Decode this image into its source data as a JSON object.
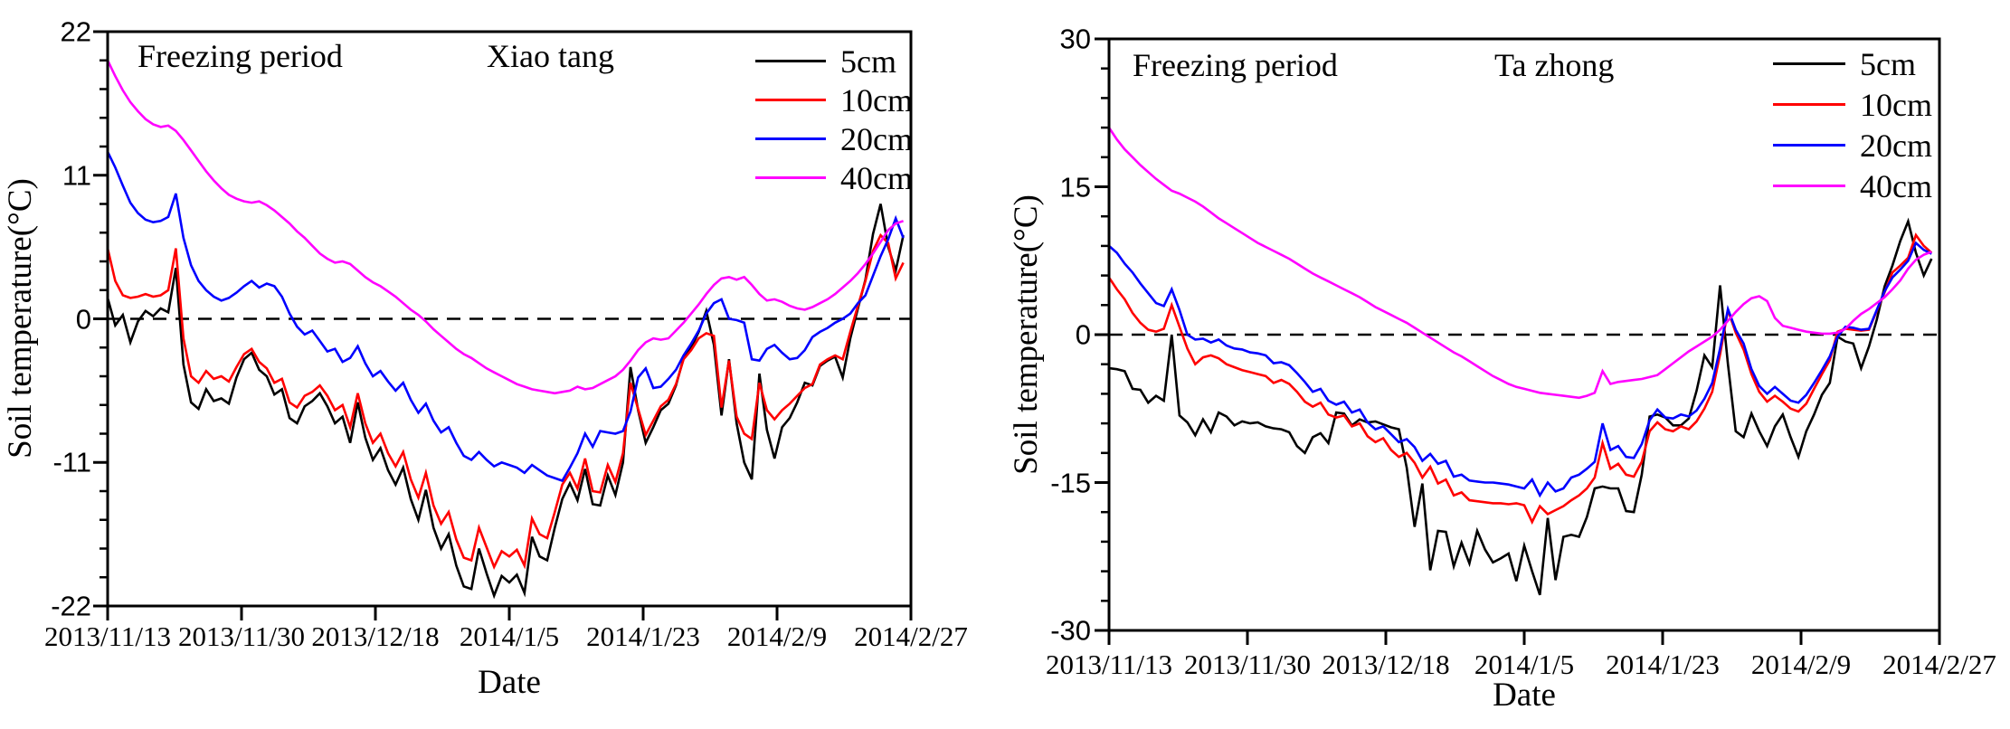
{
  "figure": {
    "background": "#ffffff",
    "text_color": "#000000"
  },
  "chart_data": [
    {
      "type": "line",
      "site_label": "Xiao tang",
      "freezing_label": "Freezing period",
      "legend_position": "top-right-inside",
      "zero_reference_line": true,
      "x_axis": {
        "title": "Date",
        "start": "2013/11/13",
        "end": "2014/2/27",
        "days": 106,
        "tick_labels": [
          "2013/11/13",
          "2013/11/30",
          "2013/12/18",
          "2014/1/5",
          "2014/1/23",
          "2014/2/9",
          "2014/2/27"
        ]
      },
      "y_axis": {
        "title": "Soil temperature(°C)",
        "min": -22,
        "max": 22,
        "major_ticks": [
          22,
          11,
          0,
          -11,
          -22
        ],
        "minor_divisions": 5
      },
      "series": [
        {
          "name": "5cm",
          "color": "#000000",
          "values": [
            1.6,
            -0.5,
            0.3,
            -1.8,
            -0.2,
            0.6,
            0.2,
            0.8,
            0.5,
            3.9,
            -3.5,
            -6.4,
            -6.9,
            -5.4,
            -6.3,
            -6.1,
            -6.5,
            -4.5,
            -3.1,
            -2.6,
            -3.9,
            -4.4,
            -5.8,
            -5.4,
            -7.6,
            -8.0,
            -6.7,
            -6.3,
            -5.7,
            -6.7,
            -8.0,
            -7.5,
            -9.5,
            -6.4,
            -9.1,
            -10.8,
            -9.9,
            -11.6,
            -12.7,
            -11.4,
            -13.8,
            -15.4,
            -13.1,
            -16.0,
            -17.6,
            -16.5,
            -18.9,
            -20.5,
            -20.7,
            -17.6,
            -19.5,
            -21.2,
            -19.7,
            -20.2,
            -19.6,
            -21.0,
            -16.7,
            -18.2,
            -18.5,
            -16.0,
            -13.8,
            -12.6,
            -13.9,
            -11.5,
            -14.2,
            -14.3,
            -12.0,
            -13.5,
            -11.0,
            -3.7,
            -7.0,
            -9.5,
            -8.3,
            -7.0,
            -6.5,
            -5.1,
            -3.0,
            -2.2,
            -1.0,
            0.6,
            -2.0,
            -7.4,
            -3.1,
            -8.0,
            -11.0,
            -12.3,
            -4.2,
            -8.5,
            -10.7,
            -8.3,
            -7.6,
            -6.4,
            -4.9,
            -5.1,
            -3.6,
            -3.2,
            -2.9,
            -4.5,
            -1.5,
            0.8,
            3.0,
            6.5,
            8.8,
            5.5,
            3.7,
            6.4
          ]
        },
        {
          "name": "10cm",
          "color": "#ff0000",
          "values": [
            5.4,
            2.9,
            1.8,
            1.6,
            1.7,
            1.9,
            1.7,
            1.8,
            2.2,
            5.4,
            -1.5,
            -4.4,
            -4.9,
            -4.0,
            -4.6,
            -4.4,
            -4.8,
            -3.7,
            -2.7,
            -2.3,
            -3.3,
            -3.8,
            -4.9,
            -4.6,
            -6.4,
            -6.8,
            -5.9,
            -5.6,
            -5.1,
            -5.9,
            -7.0,
            -6.6,
            -8.3,
            -5.7,
            -8.0,
            -9.5,
            -8.8,
            -10.3,
            -11.3,
            -10.2,
            -12.3,
            -13.7,
            -11.8,
            -14.3,
            -15.7,
            -14.8,
            -16.9,
            -18.3,
            -18.5,
            -16.0,
            -17.5,
            -19.0,
            -17.8,
            -18.2,
            -17.7,
            -18.9,
            -15.3,
            -16.5,
            -16.8,
            -14.8,
            -12.7,
            -11.8,
            -13.0,
            -10.7,
            -13.2,
            -13.3,
            -11.2,
            -12.5,
            -10.3,
            -4.9,
            -6.9,
            -8.9,
            -7.8,
            -6.7,
            -6.2,
            -5.0,
            -3.1,
            -2.4,
            -1.5,
            -1.1,
            -1.3,
            -6.8,
            -3.2,
            -7.5,
            -8.8,
            -9.2,
            -4.9,
            -7.0,
            -7.7,
            -7.0,
            -6.5,
            -5.9,
            -5.3,
            -5.0,
            -3.5,
            -3.1,
            -2.8,
            -3.1,
            -1.0,
            1.0,
            2.9,
            5.2,
            6.4,
            5.8,
            3.1,
            4.3
          ]
        },
        {
          "name": "20cm",
          "color": "#0000ff",
          "values": [
            12.8,
            11.6,
            10.2,
            8.9,
            8.1,
            7.6,
            7.4,
            7.5,
            7.8,
            9.6,
            6.2,
            4.1,
            2.9,
            2.2,
            1.7,
            1.4,
            1.6,
            2.0,
            2.5,
            2.9,
            2.4,
            2.7,
            2.5,
            1.7,
            0.4,
            -0.6,
            -1.2,
            -0.9,
            -1.7,
            -2.5,
            -2.3,
            -3.3,
            -3.0,
            -2.1,
            -3.4,
            -4.4,
            -4.0,
            -4.8,
            -5.5,
            -4.9,
            -6.2,
            -7.2,
            -6.5,
            -7.8,
            -8.7,
            -8.3,
            -9.5,
            -10.5,
            -10.8,
            -10.2,
            -10.8,
            -11.3,
            -11.0,
            -11.2,
            -11.4,
            -11.8,
            -11.2,
            -11.6,
            -12.0,
            -12.2,
            -12.4,
            -11.4,
            -10.3,
            -8.8,
            -9.8,
            -8.6,
            -8.7,
            -8.8,
            -8.6,
            -7.1,
            -4.5,
            -3.8,
            -5.3,
            -5.2,
            -4.6,
            -3.9,
            -2.8,
            -1.9,
            -0.9,
            0.4,
            1.2,
            1.5,
            0.0,
            -0.1,
            -0.3,
            -3.1,
            -3.2,
            -2.3,
            -2.0,
            -2.6,
            -3.1,
            -3.0,
            -2.4,
            -1.4,
            -1.0,
            -0.7,
            -0.3,
            0.0,
            0.4,
            1.2,
            1.8,
            3.3,
            4.8,
            6.1,
            7.7,
            6.2
          ]
        },
        {
          "name": "40cm",
          "color": "#ff00ff",
          "values": [
            19.8,
            18.6,
            17.5,
            16.6,
            15.9,
            15.3,
            14.9,
            14.7,
            14.8,
            14.4,
            13.7,
            12.9,
            12.1,
            11.3,
            10.6,
            10.0,
            9.5,
            9.2,
            9.0,
            8.9,
            9.0,
            8.7,
            8.3,
            7.8,
            7.3,
            6.7,
            6.2,
            5.6,
            5.0,
            4.6,
            4.3,
            4.4,
            4.2,
            3.7,
            3.2,
            2.8,
            2.5,
            2.1,
            1.7,
            1.2,
            0.7,
            0.3,
            -0.2,
            -0.8,
            -1.3,
            -1.8,
            -2.3,
            -2.7,
            -3.0,
            -3.4,
            -3.8,
            -4.1,
            -4.4,
            -4.7,
            -5.0,
            -5.2,
            -5.4,
            -5.5,
            -5.6,
            -5.7,
            -5.6,
            -5.5,
            -5.2,
            -5.4,
            -5.3,
            -5.0,
            -4.7,
            -4.4,
            -3.9,
            -3.2,
            -2.4,
            -1.8,
            -1.5,
            -1.6,
            -1.5,
            -0.9,
            -0.3,
            0.4,
            1.1,
            1.9,
            2.6,
            3.1,
            3.2,
            3.0,
            3.2,
            2.6,
            1.9,
            1.4,
            1.5,
            1.3,
            1.0,
            0.8,
            0.7,
            0.9,
            1.2,
            1.5,
            1.9,
            2.4,
            2.9,
            3.5,
            4.2,
            5.0,
            5.9,
            6.8,
            7.3,
            7.5
          ]
        }
      ]
    },
    {
      "type": "line",
      "site_label": "Ta zhong",
      "freezing_label": "Freezing period",
      "legend_position": "top-right-inside",
      "zero_reference_line": true,
      "x_axis": {
        "title": "Date",
        "start": "2013/11/13",
        "end": "2014/2/27",
        "days": 106,
        "tick_labels": [
          "2013/11/13",
          "2013/11/30",
          "2013/12/18",
          "2014/1/5",
          "2014/1/23",
          "2014/2/9",
          "2014/2/27"
        ]
      },
      "y_axis": {
        "title": "Soil temperature(°C)",
        "min": -30,
        "max": 30,
        "major_ticks": [
          30,
          15,
          0,
          -15,
          -30
        ],
        "minor_divisions": 5
      },
      "series": [
        {
          "name": "5cm",
          "color": "#000000",
          "values": [
            -3.4,
            -3.5,
            -3.7,
            -5.5,
            -5.6,
            -6.9,
            -6.2,
            -6.7,
            0.0,
            -8.2,
            -8.9,
            -10.2,
            -8.6,
            -9.9,
            -7.9,
            -8.3,
            -9.2,
            -8.8,
            -9.0,
            -8.9,
            -9.3,
            -9.5,
            -9.6,
            -9.9,
            -11.3,
            -12.0,
            -10.4,
            -10.0,
            -11.0,
            -7.9,
            -8.0,
            -9.2,
            -8.6,
            -8.9,
            -8.8,
            -9.1,
            -9.4,
            -9.6,
            -13.5,
            -19.5,
            -15.1,
            -23.9,
            -19.9,
            -20.0,
            -23.5,
            -21.1,
            -23.2,
            -19.9,
            -21.8,
            -23.1,
            -22.7,
            -22.2,
            -25.0,
            -21.4,
            -24.0,
            -26.4,
            -18.6,
            -24.9,
            -20.5,
            -20.3,
            -20.5,
            -18.5,
            -15.6,
            -15.4,
            -15.6,
            -15.6,
            -17.9,
            -18.0,
            -14.2,
            -8.3,
            -8.1,
            -8.4,
            -9.2,
            -9.2,
            -8.5,
            -5.7,
            -2.1,
            -3.3,
            5.0,
            -3.0,
            -9.8,
            -10.4,
            -8.0,
            -9.8,
            -11.3,
            -9.3,
            -8.1,
            -10.4,
            -12.4,
            -9.8,
            -8.1,
            -6.1,
            -4.9,
            -0.2,
            -0.7,
            -0.9,
            -3.4,
            -1.2,
            1.5,
            4.9,
            7.0,
            9.5,
            11.5,
            8.3,
            6.0,
            7.7
          ]
        },
        {
          "name": "10cm",
          "color": "#ff0000",
          "values": [
            5.8,
            4.6,
            3.6,
            2.2,
            1.2,
            0.5,
            0.3,
            0.6,
            3.0,
            0.8,
            -1.4,
            -3.0,
            -2.3,
            -2.1,
            -2.4,
            -3.0,
            -3.3,
            -3.6,
            -3.8,
            -4.0,
            -4.2,
            -4.9,
            -4.6,
            -5.0,
            -5.8,
            -6.8,
            -7.3,
            -6.9,
            -8.1,
            -8.4,
            -8.2,
            -9.3,
            -9.0,
            -10.3,
            -10.9,
            -10.5,
            -11.7,
            -12.4,
            -12.0,
            -13.0,
            -14.5,
            -13.4,
            -15.1,
            -14.7,
            -16.3,
            -16.0,
            -16.8,
            -16.9,
            -17.0,
            -17.1,
            -17.1,
            -17.2,
            -17.1,
            -17.3,
            -19.0,
            -17.4,
            -18.2,
            -17.8,
            -17.4,
            -16.8,
            -16.3,
            -15.6,
            -14.5,
            -11.0,
            -13.6,
            -13.1,
            -14.2,
            -14.4,
            -12.9,
            -9.8,
            -8.9,
            -9.6,
            -9.8,
            -9.3,
            -9.6,
            -8.8,
            -7.5,
            -5.8,
            -2.0,
            2.5,
            0.2,
            -1.5,
            -4.0,
            -5.8,
            -6.8,
            -6.2,
            -6.8,
            -7.5,
            -7.8,
            -7.0,
            -5.5,
            -4.0,
            -2.6,
            0.3,
            0.6,
            0.5,
            0.4,
            0.5,
            2.4,
            4.3,
            6.3,
            7.0,
            7.8,
            10.1,
            9.0,
            8.3
          ]
        },
        {
          "name": "20cm",
          "color": "#0000ff",
          "values": [
            9.0,
            8.3,
            7.2,
            6.3,
            5.2,
            4.2,
            3.2,
            2.9,
            4.6,
            2.5,
            0.0,
            -0.5,
            -0.4,
            -0.8,
            -0.5,
            -1.1,
            -1.4,
            -1.5,
            -1.8,
            -1.9,
            -2.1,
            -2.9,
            -2.8,
            -3.1,
            -3.9,
            -4.8,
            -5.8,
            -5.5,
            -6.7,
            -7.1,
            -6.8,
            -7.9,
            -7.6,
            -8.9,
            -9.6,
            -9.3,
            -10.1,
            -10.9,
            -10.6,
            -11.4,
            -12.8,
            -12.1,
            -13.1,
            -12.8,
            -14.4,
            -14.2,
            -14.8,
            -14.9,
            -15.0,
            -15.0,
            -15.1,
            -15.2,
            -15.4,
            -15.6,
            -14.7,
            -16.3,
            -15.0,
            -15.9,
            -15.6,
            -14.5,
            -14.2,
            -13.6,
            -12.9,
            -9.0,
            -11.7,
            -11.3,
            -12.4,
            -12.5,
            -11.1,
            -8.7,
            -7.6,
            -8.4,
            -8.5,
            -8.1,
            -8.3,
            -7.7,
            -6.5,
            -4.9,
            -1.4,
            2.6,
            0.5,
            -0.9,
            -3.5,
            -5.2,
            -6.0,
            -5.3,
            -6.0,
            -6.7,
            -6.9,
            -6.1,
            -4.9,
            -3.6,
            -2.2,
            -0.2,
            0.8,
            0.7,
            0.5,
            0.6,
            2.5,
            4.4,
            5.8,
            6.6,
            7.5,
            9.3,
            8.6,
            8.2
          ]
        },
        {
          "name": "40cm",
          "color": "#ff00ff",
          "values": [
            21.0,
            19.8,
            18.8,
            18.0,
            17.2,
            16.5,
            15.8,
            15.2,
            14.6,
            14.3,
            13.9,
            13.5,
            13.0,
            12.4,
            11.8,
            11.3,
            10.8,
            10.3,
            9.8,
            9.3,
            8.9,
            8.5,
            8.1,
            7.7,
            7.2,
            6.7,
            6.2,
            5.8,
            5.4,
            5.0,
            4.6,
            4.2,
            3.8,
            3.3,
            2.8,
            2.4,
            2.0,
            1.6,
            1.2,
            0.7,
            0.2,
            -0.3,
            -0.8,
            -1.3,
            -1.8,
            -2.2,
            -2.7,
            -3.2,
            -3.7,
            -4.2,
            -4.6,
            -5.0,
            -5.3,
            -5.5,
            -5.7,
            -5.9,
            -6.0,
            -6.1,
            -6.2,
            -6.3,
            -6.4,
            -6.2,
            -5.9,
            -3.7,
            -5.0,
            -4.8,
            -4.7,
            -4.6,
            -4.5,
            -4.3,
            -4.1,
            -3.5,
            -2.9,
            -2.3,
            -1.7,
            -1.2,
            -0.7,
            -0.2,
            0.5,
            1.4,
            2.3,
            3.1,
            3.7,
            3.9,
            3.4,
            1.7,
            0.9,
            0.7,
            0.5,
            0.3,
            0.2,
            0.1,
            0.1,
            0.2,
            0.6,
            1.4,
            2.1,
            2.6,
            3.2,
            3.8,
            4.6,
            5.5,
            6.7,
            7.6,
            8.1,
            8.4
          ]
        }
      ]
    }
  ]
}
